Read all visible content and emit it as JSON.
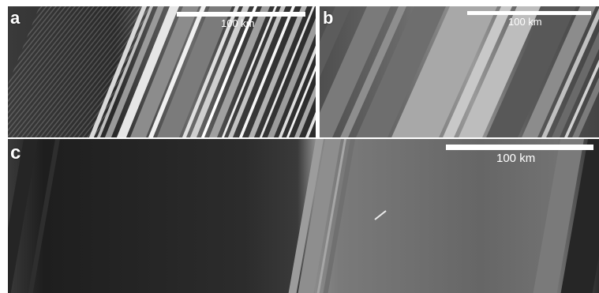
{
  "figure": {
    "panels": [
      {
        "letter": "a",
        "scale_label": "100 km"
      },
      {
        "letter": "b",
        "scale_label": "100 km"
      },
      {
        "letter": "c",
        "scale_label": "100 km"
      }
    ]
  },
  "colors": {
    "background": "#ffffff",
    "annotation": "#ffffff"
  }
}
